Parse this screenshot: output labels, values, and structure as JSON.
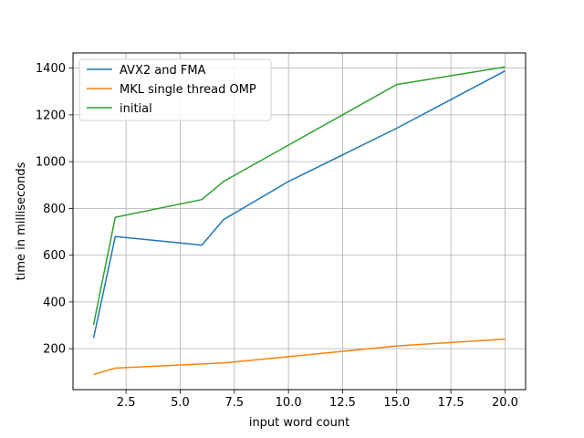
{
  "chart_data": {
    "type": "line",
    "title": "",
    "xlabel": "input word count",
    "ylabel": "time in milliseconds",
    "xlim": [
      0.05,
      20.95
    ],
    "ylim": [
      25,
      1465
    ],
    "xticks": [
      2.5,
      5.0,
      7.5,
      10.0,
      12.5,
      15.0,
      17.5,
      20.0
    ],
    "xtick_labels": [
      "2.5",
      "5.0",
      "7.5",
      "10.0",
      "12.5",
      "15.0",
      "17.5",
      "20.0"
    ],
    "yticks": [
      200,
      400,
      600,
      800,
      1000,
      1200,
      1400
    ],
    "ytick_labels": [
      "200",
      "400",
      "600",
      "800",
      "1000",
      "1200",
      "1400"
    ],
    "grid": true,
    "legend_position": "top-left",
    "series": [
      {
        "name": "AVX2 and FMA",
        "color": "#1f77b4",
        "x": [
          1,
          2,
          6,
          7,
          10,
          15,
          20
        ],
        "y": [
          245,
          680,
          643,
          752,
          915,
          1143,
          1388
        ]
      },
      {
        "name": "MKL single thread OMP",
        "color": "#ff7f0e",
        "x": [
          1,
          2,
          7,
          10,
          15,
          20
        ],
        "y": [
          90,
          117,
          139,
          166,
          212,
          241
        ]
      },
      {
        "name": "initial",
        "color": "#2ca02c",
        "x": [
          1,
          2,
          6,
          7,
          15,
          20
        ],
        "y": [
          302,
          762,
          838,
          915,
          1330,
          1405
        ]
      }
    ]
  }
}
